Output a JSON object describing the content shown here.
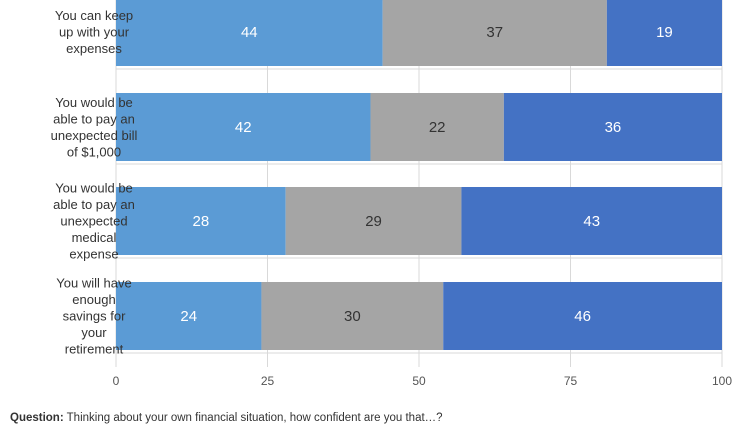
{
  "chart_data": {
    "type": "bar",
    "orientation": "horizontal",
    "stacked": true,
    "categories": [
      "You can keep up with your expenses",
      "You would be able to pay an unexpected bill of $1,000",
      "You would be able to pay an unexpected medical expense",
      "You will have enough savings for your retirement"
    ],
    "category_lines": [
      [
        "You can keep",
        "up with your",
        "expenses"
      ],
      [
        "You would be",
        "able to pay an",
        "unexpected bill",
        "of $1,000"
      ],
      [
        "You would be",
        "able to pay an",
        "unexpected",
        "medical",
        "expense"
      ],
      [
        "You will have",
        "enough",
        "savings for",
        "your",
        "retirement"
      ]
    ],
    "series": [
      {
        "values": [
          44,
          42,
          28,
          24
        ],
        "color": "#5b9bd5",
        "label_color": "#ffffff"
      },
      {
        "values": [
          37,
          22,
          29,
          30
        ],
        "color": "#a5a5a5",
        "label_color": "#333333"
      },
      {
        "values": [
          19,
          36,
          43,
          46
        ],
        "color": "#4472c4",
        "label_color": "#ffffff"
      }
    ],
    "xlim": [
      0,
      100
    ],
    "xticks": [
      "0",
      "25",
      "50",
      "75",
      "100"
    ],
    "xtick_values": [
      0,
      25,
      50,
      75,
      100
    ],
    "grid": true
  },
  "footnote": {
    "prefix": "Question:",
    "text": " Thinking about your own financial situation, how confident are you that…?"
  }
}
